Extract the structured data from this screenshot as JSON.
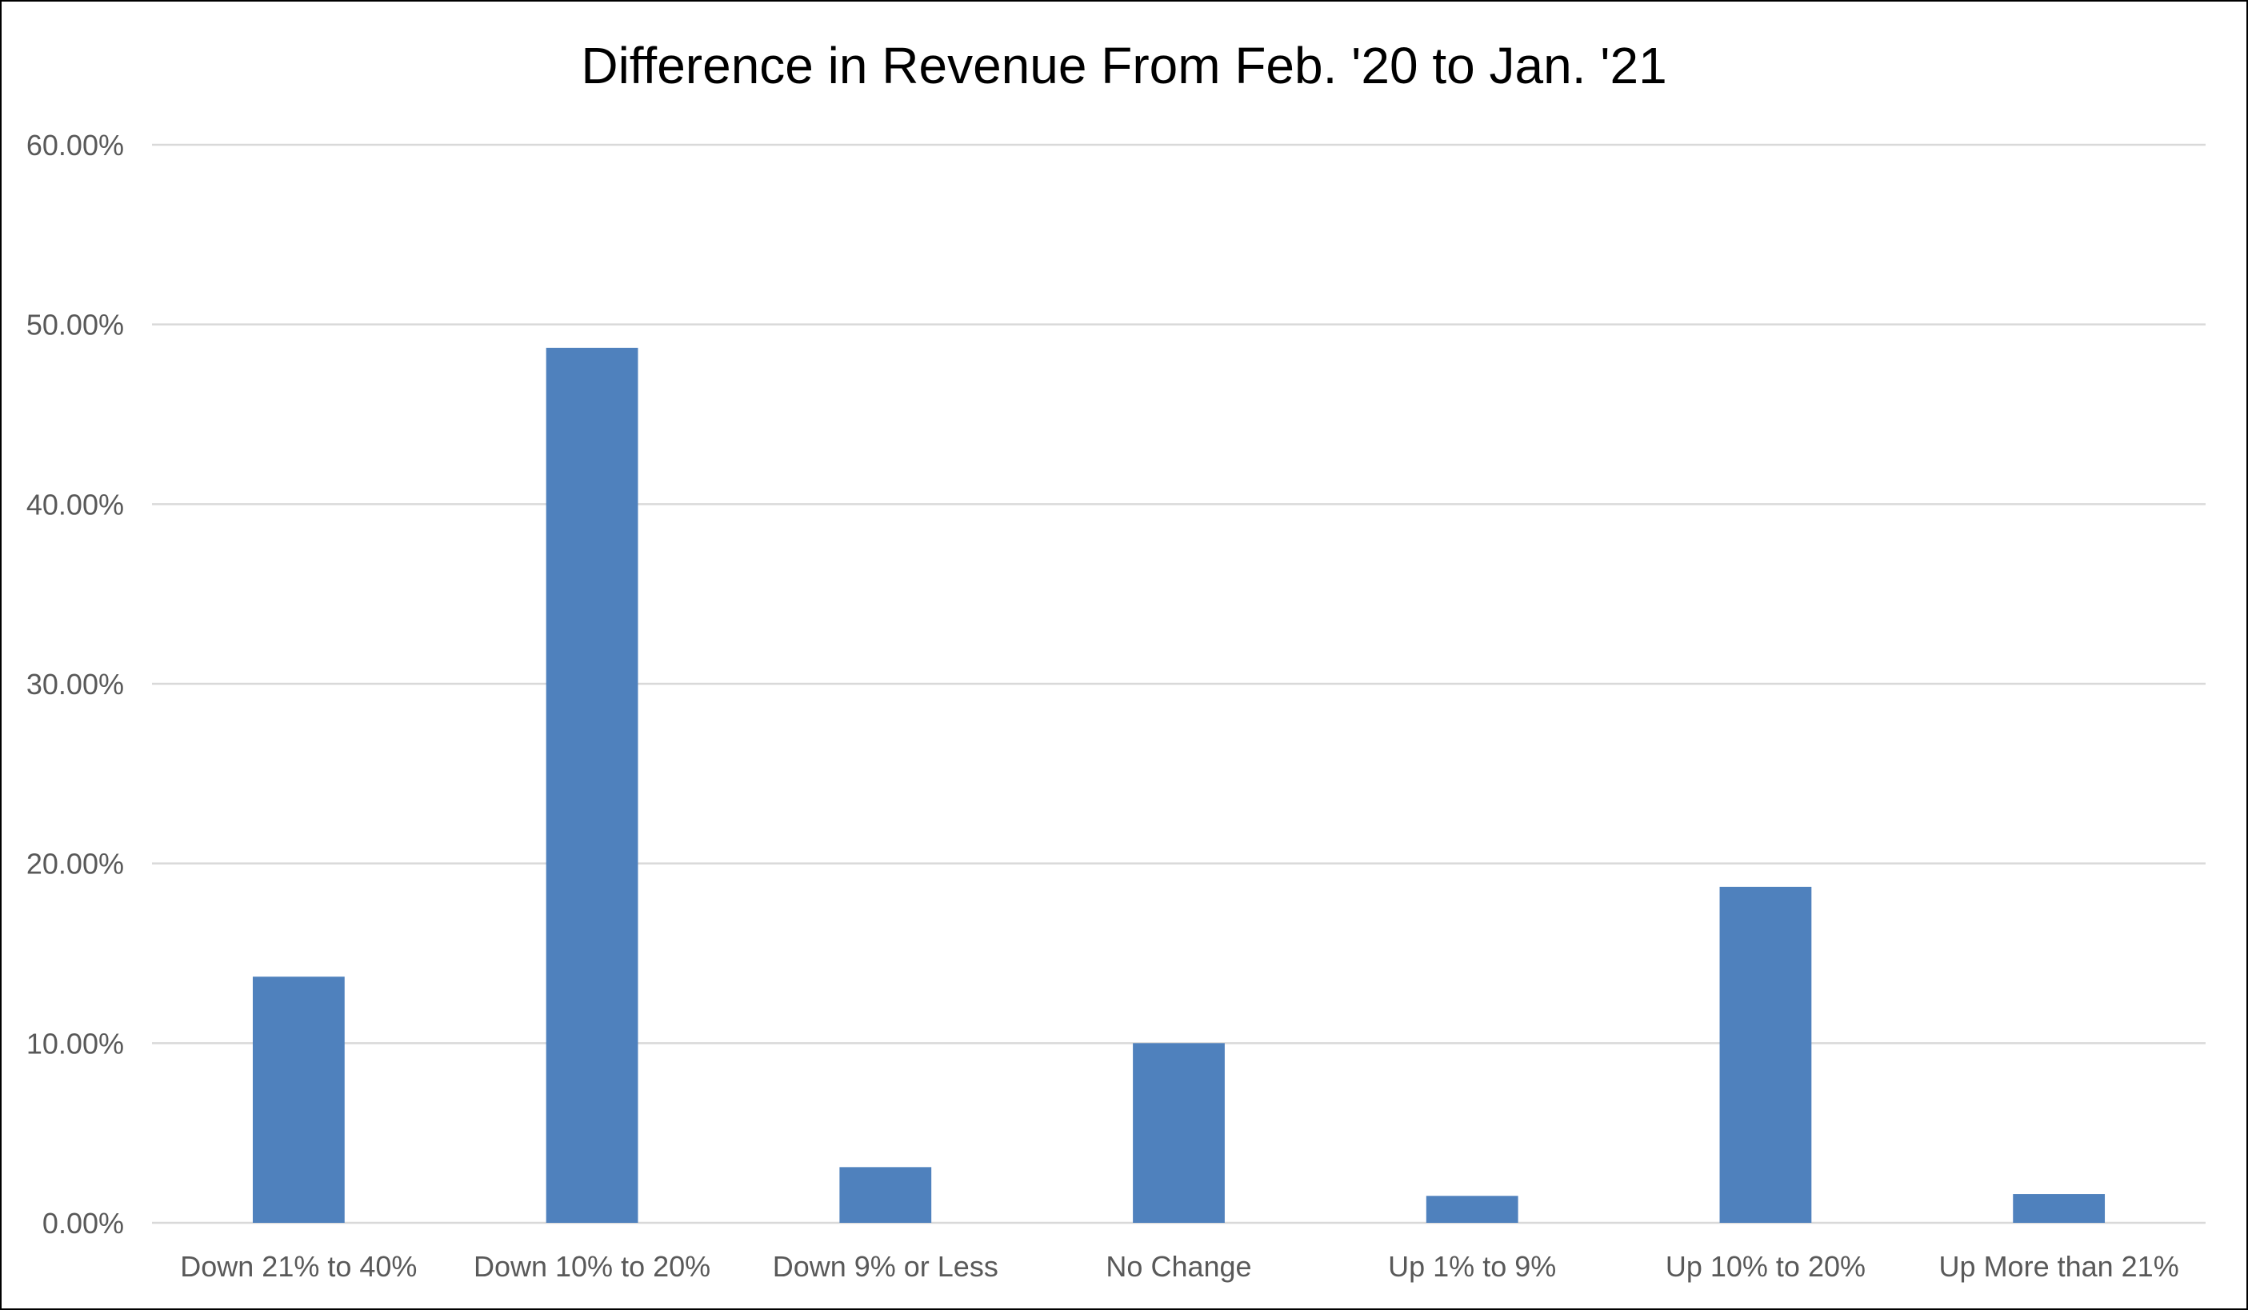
{
  "chart_data": {
    "type": "bar",
    "title": "Difference in Revenue From Feb. '20 to Jan. '21",
    "xlabel": "",
    "ylabel": "",
    "categories": [
      "Down 21% to 40%",
      "Down 10% to 20%",
      "Down 9% or Less",
      "No Change",
      "Up 1% to 9%",
      "Up 10% to 20%",
      "Up More than 21%"
    ],
    "values": [
      13.7,
      48.7,
      3.1,
      10.0,
      1.5,
      18.7,
      1.6
    ],
    "ylim": [
      0,
      60
    ],
    "yticks": [
      0,
      10,
      20,
      30,
      40,
      50,
      60
    ],
    "ytick_labels": [
      "0.00%",
      "10.00%",
      "20.00%",
      "30.00%",
      "40.00%",
      "50.00%",
      "60.00%"
    ],
    "grid": true,
    "legend": "none",
    "colors": {
      "bar": "#4f81bd",
      "gridline": "#d9d9d9",
      "tick_text": "#595959",
      "title_text": "#000000",
      "border": "#000000"
    }
  }
}
